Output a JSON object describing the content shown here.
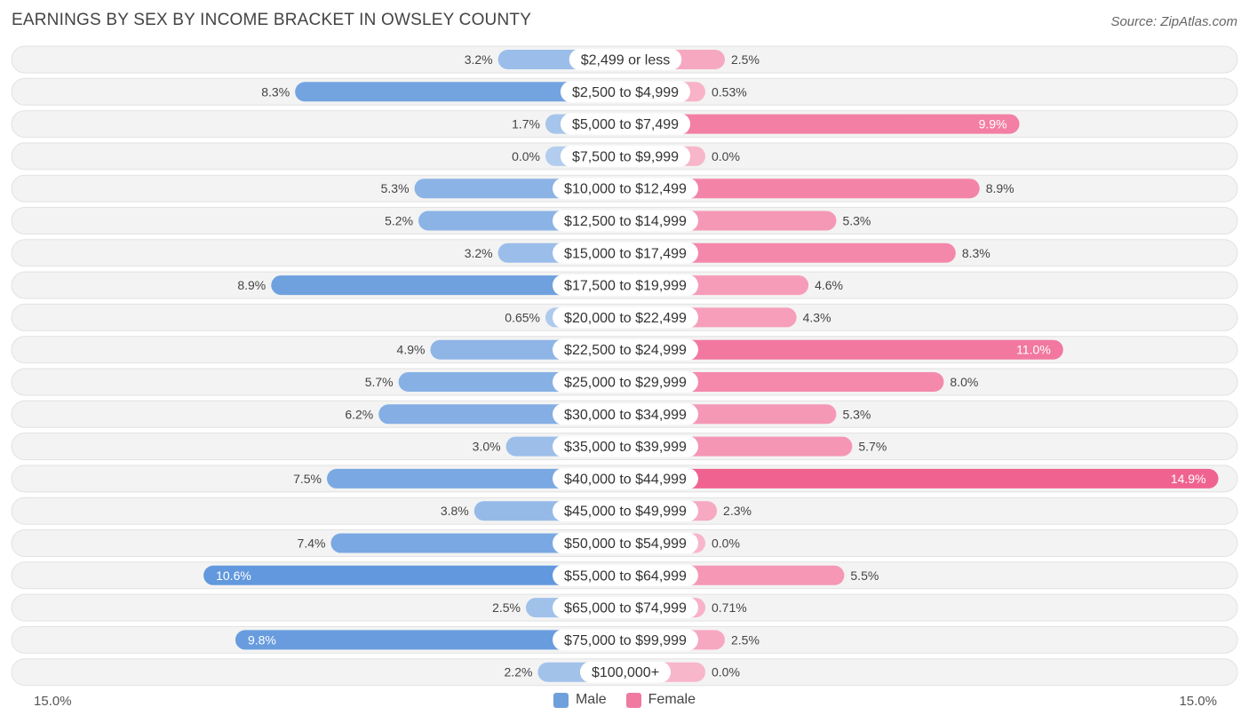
{
  "title": "EARNINGS BY SEX BY INCOME BRACKET IN OWSLEY COUNTY",
  "source": "Source: ZipAtlas.com",
  "colors": {
    "male": "#6ea0dc",
    "female": "#f07aa0",
    "row_bg": "#f1f1f1"
  },
  "axis": {
    "left_label": "15.0%",
    "right_label": "15.0%"
  },
  "legend": {
    "male": "Male",
    "female": "Female"
  },
  "chart_data": {
    "type": "bar",
    "orientation": "horizontal-diverging",
    "title": "EARNINGS BY SEX BY INCOME BRACKET IN OWSLEY COUNTY",
    "xlim": [
      -15.0,
      15.0
    ],
    "categories": [
      "$2,499 or less",
      "$2,500 to $4,999",
      "$5,000 to $7,499",
      "$7,500 to $9,999",
      "$10,000 to $12,499",
      "$12,500 to $14,999",
      "$15,000 to $17,499",
      "$17,500 to $19,999",
      "$20,000 to $22,499",
      "$22,500 to $24,999",
      "$25,000 to $29,999",
      "$30,000 to $34,999",
      "$35,000 to $39,999",
      "$40,000 to $44,999",
      "$45,000 to $49,999",
      "$50,000 to $54,999",
      "$55,000 to $64,999",
      "$65,000 to $74,999",
      "$75,000 to $99,999",
      "$100,000+"
    ],
    "series": [
      {
        "name": "Male",
        "values": [
          3.2,
          8.3,
          1.7,
          0.0,
          5.3,
          5.2,
          3.2,
          8.9,
          0.65,
          4.9,
          5.7,
          6.2,
          3.0,
          7.5,
          3.8,
          7.4,
          10.6,
          2.5,
          9.8,
          2.2
        ],
        "labels": [
          "3.2%",
          "8.3%",
          "1.7%",
          "0.0%",
          "5.3%",
          "5.2%",
          "3.2%",
          "8.9%",
          "0.65%",
          "4.9%",
          "5.7%",
          "6.2%",
          "3.0%",
          "7.5%",
          "3.8%",
          "7.4%",
          "10.6%",
          "2.5%",
          "9.8%",
          "2.2%"
        ]
      },
      {
        "name": "Female",
        "values": [
          2.5,
          0.53,
          9.9,
          0.0,
          8.9,
          5.3,
          8.3,
          4.6,
          4.3,
          11.0,
          8.0,
          5.3,
          5.7,
          14.9,
          2.3,
          0.0,
          5.5,
          0.71,
          2.5,
          0.0
        ],
        "labels": [
          "2.5%",
          "0.53%",
          "9.9%",
          "0.0%",
          "8.9%",
          "5.3%",
          "8.3%",
          "4.6%",
          "4.3%",
          "11.0%",
          "8.0%",
          "5.3%",
          "5.7%",
          "14.9%",
          "2.3%",
          "0.0%",
          "5.5%",
          "0.71%",
          "2.5%",
          "0.0%"
        ]
      }
    ],
    "legend_position": "bottom-center"
  }
}
